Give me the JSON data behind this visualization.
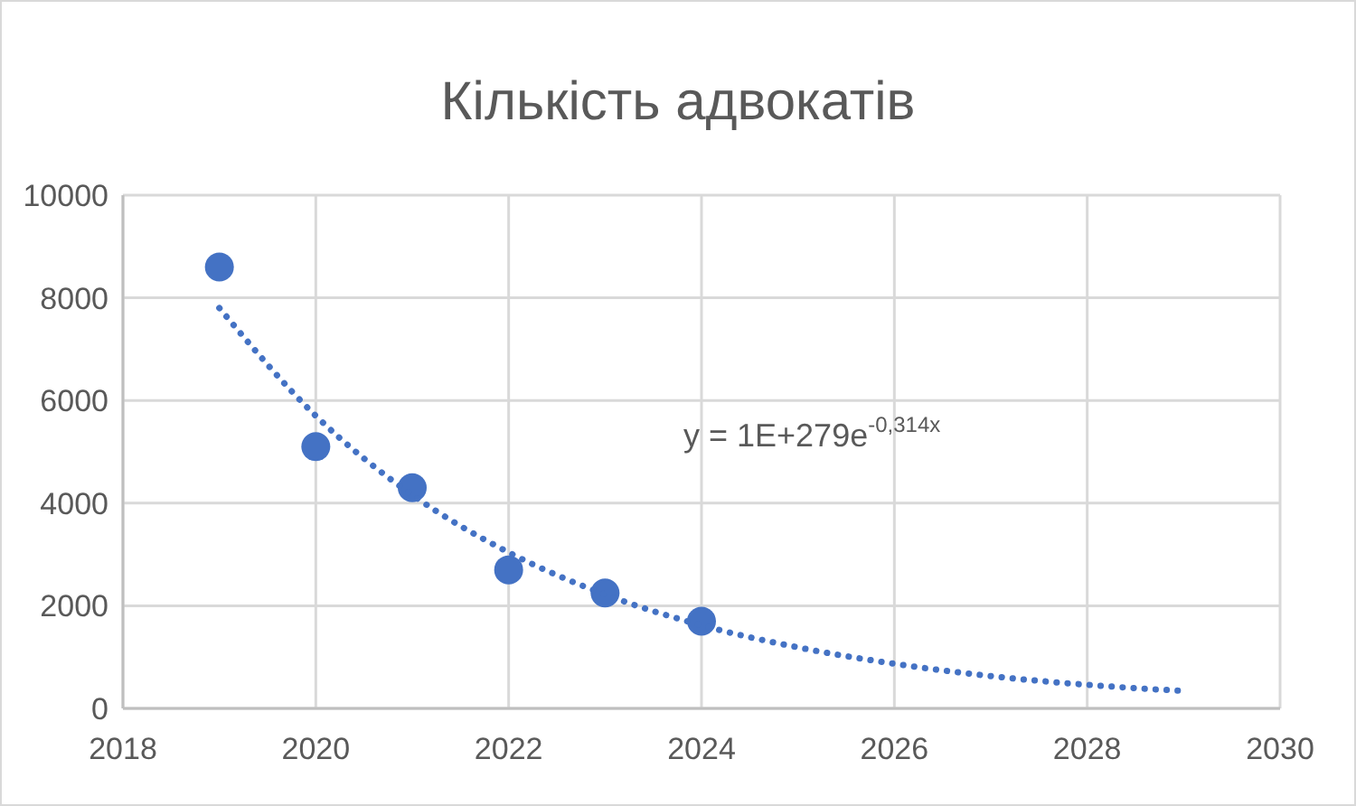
{
  "chart_data": {
    "type": "scatter",
    "title": "Кількість адвокатів",
    "xlim": [
      2018,
      2030
    ],
    "xticks": [
      2018,
      2020,
      2022,
      2024,
      2026,
      2028,
      2030
    ],
    "ylim": [
      0,
      10000
    ],
    "yticks": [
      0,
      2000,
      4000,
      6000,
      8000,
      10000
    ],
    "grid": true,
    "marker": "circle",
    "series": [
      {
        "color": "#4472c4",
        "x": [
          2019,
          2020,
          2021,
          2022,
          2023,
          2024
        ],
        "values": [
          8600,
          5100,
          4300,
          2700,
          2250,
          1700
        ]
      },
      {
        "type": "line",
        "color": "#4472c4",
        "line_style": "dotted",
        "marker": "none",
        "x": [
          2019,
          2020,
          2021,
          2022,
          2023,
          2024,
          2025,
          2026,
          2027,
          2028,
          2029
        ],
        "values": [
          7800,
          5700,
          4160,
          3040,
          2220,
          1620,
          1190,
          870,
          630,
          460,
          340
        ]
      }
    ],
    "annotations": [
      "y = 1E+279e$^{-0,314x}$"
    ]
  }
}
